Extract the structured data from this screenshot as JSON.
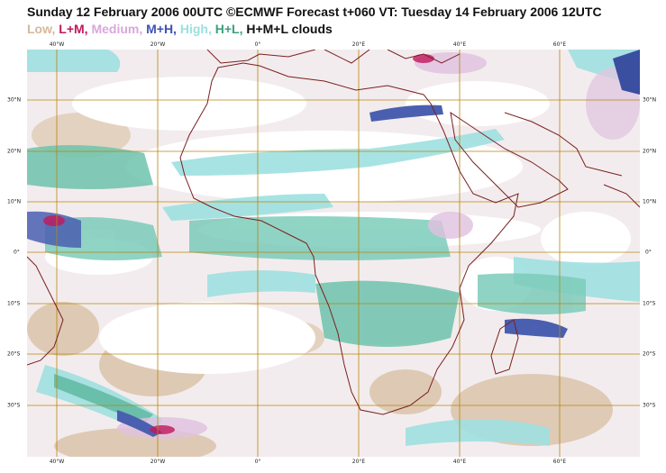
{
  "title": "Sunday 12 February 2006 00UTC ©ECMWF Forecast t+060 VT: Tuesday 14 February 2006 12UTC",
  "legend": [
    {
      "text": "Low,",
      "color": "#d4b89a"
    },
    {
      "text": "L+M,",
      "color": "#c2185b"
    },
    {
      "text": "Medium,",
      "color": "#d8a8d8"
    },
    {
      "text": "M+H,",
      "color": "#3f51b5"
    },
    {
      "text": "High,",
      "color": "#9be0e0"
    },
    {
      "text": "H+L,",
      "color": "#3aa37a"
    },
    {
      "text": "H+M+L clouds",
      "color": "#111111"
    }
  ],
  "map": {
    "lon_ticks": [
      "40°W",
      "20°W",
      "0°",
      "20°E",
      "40°E",
      "60°E"
    ],
    "lat_ticks": [
      "30°N",
      "20°N",
      "10°N",
      "0°",
      "10°S",
      "20°S",
      "30°S"
    ],
    "colors": {
      "grid": "#b8860b",
      "coast": "#7a1f1f",
      "low": "#d9c2a8",
      "high": "#9ee0e0",
      "hl": "#5fb8a0",
      "medium": "#e0c8e0",
      "mh": "#4a5fb0",
      "lm": "#c2185b"
    }
  }
}
